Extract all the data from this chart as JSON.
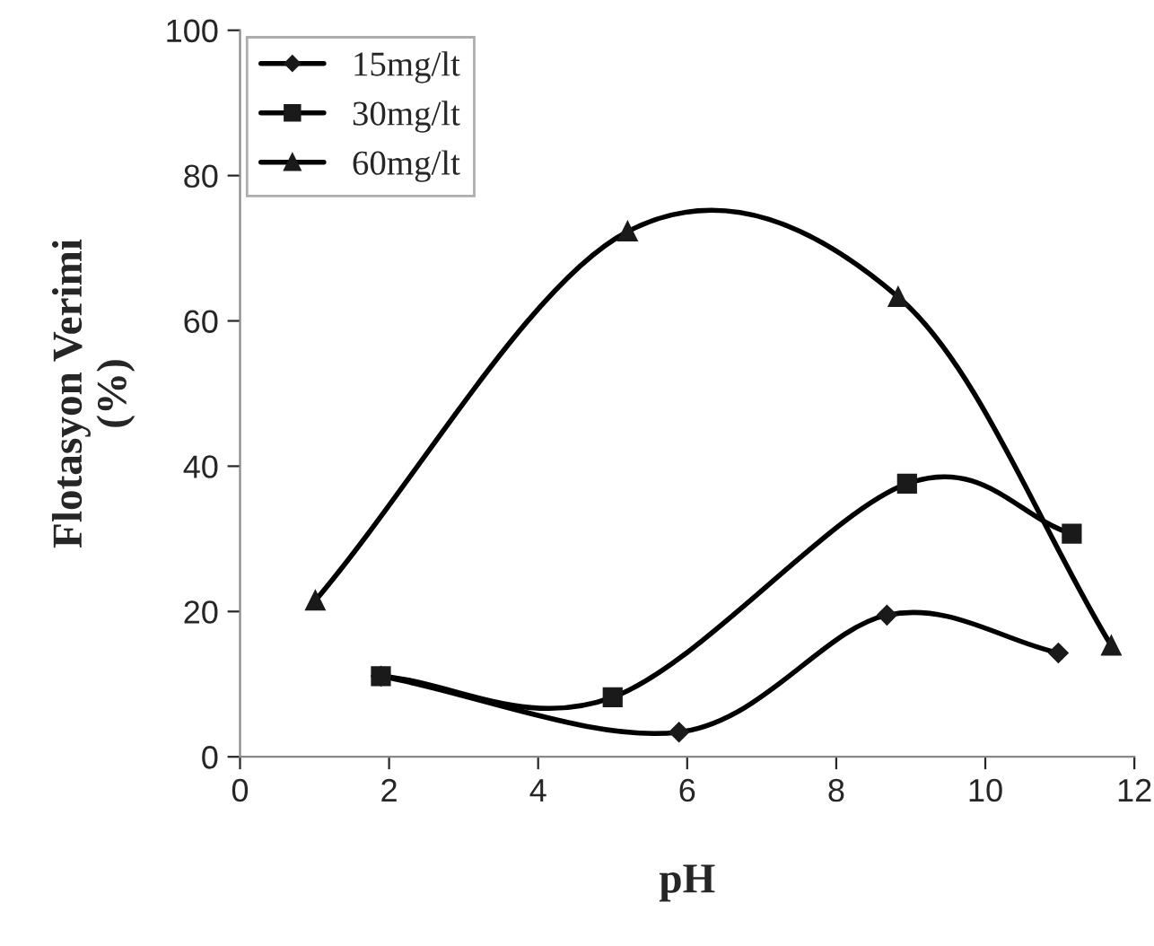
{
  "chart_data": {
    "type": "line",
    "xlabel": "pH",
    "ylabel": "Flotasyon Verimi\n(%)",
    "xlim": [
      0,
      12
    ],
    "xticks": [
      0,
      2,
      4,
      6,
      8,
      10,
      12
    ],
    "ylim": [
      0,
      100
    ],
    "yticks": [
      0,
      20,
      40,
      60,
      80,
      100
    ],
    "grid": false,
    "legend": "top left",
    "line_style": "solid",
    "series": [
      {
        "name": "15mg/lt",
        "color": "#1a1a1a",
        "marker": "diamond",
        "x": [
          1.89,
          5.89,
          8.68,
          10.98
        ],
        "values": [
          11.1,
          3.4,
          19.5,
          14.3
        ]
      },
      {
        "name": "30mg/lt",
        "color": "#1a1a1a",
        "marker": "square",
        "x": [
          1.89,
          5.0,
          8.95,
          11.16
        ],
        "values": [
          11.1,
          8.2,
          37.6,
          30.7
        ]
      },
      {
        "name": "60mg/lt",
        "color": "#1a1a1a",
        "marker": "triangle",
        "x": [
          1.01,
          5.2,
          8.83,
          11.69
        ],
        "values": [
          21.5,
          72.3,
          63.3,
          15.3
        ]
      }
    ]
  }
}
